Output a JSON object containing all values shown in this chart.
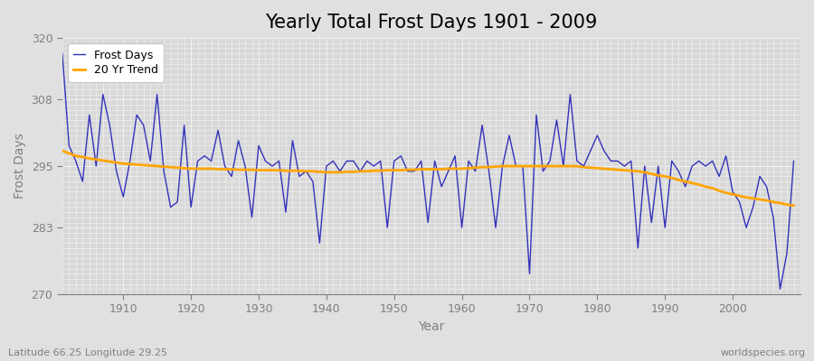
{
  "title": "Yearly Total Frost Days 1901 - 2009",
  "xlabel": "Year",
  "ylabel": "Frost Days",
  "subtitle_left": "Latitude 66.25 Longitude 29.25",
  "subtitle_right": "worldspecies.org",
  "years": [
    1901,
    1902,
    1903,
    1904,
    1905,
    1906,
    1907,
    1908,
    1909,
    1910,
    1911,
    1912,
    1913,
    1914,
    1915,
    1916,
    1917,
    1918,
    1919,
    1920,
    1921,
    1922,
    1923,
    1924,
    1925,
    1926,
    1927,
    1928,
    1929,
    1930,
    1931,
    1932,
    1933,
    1934,
    1935,
    1936,
    1937,
    1938,
    1939,
    1940,
    1941,
    1942,
    1943,
    1944,
    1945,
    1946,
    1947,
    1948,
    1949,
    1950,
    1951,
    1952,
    1953,
    1954,
    1955,
    1956,
    1957,
    1958,
    1959,
    1960,
    1961,
    1962,
    1963,
    1964,
    1965,
    1966,
    1967,
    1968,
    1969,
    1970,
    1971,
    1972,
    1973,
    1974,
    1975,
    1976,
    1977,
    1978,
    1979,
    1980,
    1981,
    1982,
    1983,
    1984,
    1985,
    1986,
    1987,
    1988,
    1989,
    1990,
    1991,
    1992,
    1993,
    1994,
    1995,
    1996,
    1997,
    1998,
    1999,
    2000,
    2001,
    2002,
    2003,
    2004,
    2005,
    2006,
    2007,
    2008,
    2009
  ],
  "frost_days": [
    317,
    299,
    296,
    292,
    305,
    295,
    309,
    303,
    294,
    289,
    296,
    305,
    303,
    296,
    309,
    294,
    287,
    288,
    303,
    287,
    296,
    297,
    296,
    302,
    295,
    293,
    300,
    295,
    285,
    299,
    296,
    295,
    296,
    286,
    300,
    293,
    294,
    292,
    280,
    295,
    296,
    294,
    296,
    296,
    294,
    296,
    295,
    296,
    283,
    296,
    297,
    294,
    294,
    296,
    284,
    296,
    291,
    294,
    297,
    283,
    296,
    294,
    303,
    294,
    283,
    295,
    301,
    295,
    295,
    274,
    305,
    294,
    296,
    304,
    295,
    309,
    296,
    295,
    298,
    301,
    298,
    296,
    296,
    295,
    296,
    279,
    295,
    284,
    295,
    283,
    296,
    294,
    291,
    295,
    296,
    295,
    296,
    293,
    297,
    290,
    288,
    283,
    287,
    293,
    291,
    285,
    271,
    278,
    296
  ],
  "trend_years": [
    1901,
    1902,
    1903,
    1904,
    1905,
    1906,
    1907,
    1908,
    1909,
    1910,
    1911,
    1912,
    1913,
    1914,
    1915,
    1916,
    1917,
    1918,
    1919,
    1920,
    1921,
    1922,
    1923,
    1924,
    1925,
    1926,
    1927,
    1928,
    1929,
    1930,
    1931,
    1932,
    1933,
    1934,
    1935,
    1936,
    1937,
    1938,
    1939,
    1940,
    1941,
    1942,
    1943,
    1944,
    1945,
    1946,
    1947,
    1948,
    1949,
    1950,
    1951,
    1952,
    1953,
    1954,
    1955,
    1956,
    1957,
    1958,
    1959,
    1960,
    1961,
    1962,
    1963,
    1964,
    1965,
    1966,
    1967,
    1968,
    1969,
    1970,
    1971,
    1972,
    1973,
    1974,
    1975,
    1976,
    1977,
    1978,
    1979,
    1980,
    1981,
    1982,
    1983,
    1984,
    1985,
    1986,
    1987,
    1988,
    1989,
    1990,
    1991,
    1992,
    1993,
    1994,
    1995,
    1996,
    1997,
    1998,
    1999,
    2000,
    2001,
    2002,
    2003,
    2004,
    2005,
    2006,
    2007,
    2008,
    2009
  ],
  "trend_values": [
    298,
    297.5,
    297,
    296.8,
    296.5,
    296.3,
    296.1,
    295.9,
    295.7,
    295.5,
    295.4,
    295.3,
    295.2,
    295.1,
    295.0,
    294.9,
    294.8,
    294.7,
    294.6,
    294.5,
    294.5,
    294.5,
    294.5,
    294.4,
    294.4,
    294.4,
    294.3,
    294.3,
    294.3,
    294.2,
    294.2,
    294.2,
    294.2,
    294.1,
    294.1,
    294.1,
    294.0,
    294.0,
    293.9,
    293.8,
    293.8,
    293.8,
    293.9,
    293.9,
    294.0,
    294.0,
    294.1,
    294.1,
    294.2,
    294.2,
    294.2,
    294.3,
    294.3,
    294.4,
    294.4,
    294.4,
    294.4,
    294.5,
    294.5,
    294.5,
    294.6,
    294.7,
    294.8,
    294.8,
    294.9,
    295.0,
    295.0,
    295.0,
    295.0,
    295.0,
    295.0,
    295.0,
    295.0,
    295.0,
    295.0,
    295.0,
    295.0,
    294.8,
    294.7,
    294.6,
    294.5,
    294.4,
    294.3,
    294.2,
    294.1,
    294.0,
    293.8,
    293.5,
    293.2,
    293.0,
    292.7,
    292.3,
    292.0,
    291.7,
    291.4,
    291.0,
    290.7,
    290.2,
    289.8,
    289.5,
    289.2,
    288.9,
    288.7,
    288.5,
    288.3,
    288.0,
    287.8,
    287.5,
    287.3
  ],
  "line_color": "#3333bb",
  "trend_color": "#ffa500",
  "bg_color": "#e0e0e0",
  "plot_bg_color": "#d8d8d8",
  "grid_color": "#f0f0f0",
  "ylim": [
    270,
    320
  ],
  "yticks": [
    270,
    283,
    295,
    308,
    320
  ],
  "xticks": [
    1910,
    1920,
    1930,
    1940,
    1950,
    1960,
    1970,
    1980,
    1990,
    2000
  ],
  "xlim": [
    1901,
    2010
  ],
  "title_fontsize": 15,
  "label_fontsize": 10,
  "tick_fontsize": 9,
  "legend_fontsize": 9
}
